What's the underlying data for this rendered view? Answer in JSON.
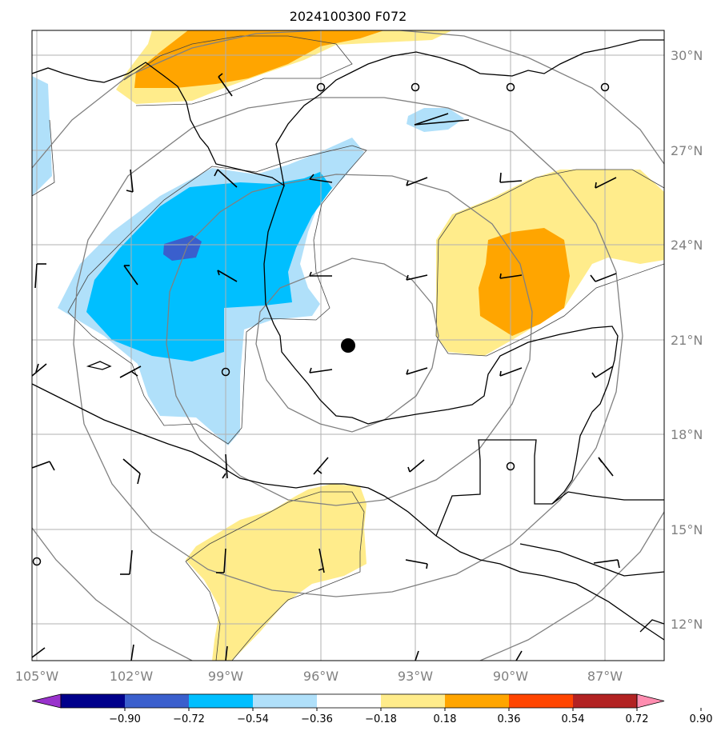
{
  "title": "2024100300 F072",
  "colors": {
    "land_outline": "#000000",
    "grid": "#b0b0b0",
    "range_ring": "#808080",
    "contour": "#444444",
    "storm_center": "#000000"
  },
  "map": {
    "lon_range": [
      -105,
      -83
    ],
    "lat_range": [
      11,
      31
    ],
    "lat_ticks": [
      {
        "value": 30,
        "label": "30°N"
      },
      {
        "value": 27,
        "label": "27°N"
      },
      {
        "value": 24,
        "label": "24°N"
      },
      {
        "value": 21,
        "label": "21°N"
      },
      {
        "value": 18,
        "label": "18°N"
      },
      {
        "value": 15,
        "label": "15°N"
      },
      {
        "value": 12,
        "label": "12°N"
      }
    ],
    "lon_ticks": [
      {
        "value": -105,
        "label": "105°W"
      },
      {
        "value": -102,
        "label": "102°W"
      },
      {
        "value": -99,
        "label": "99°W"
      },
      {
        "value": -96,
        "label": "96°W"
      },
      {
        "value": -93,
        "label": "93°W"
      },
      {
        "value": -90,
        "label": "90°W"
      },
      {
        "value": -87,
        "label": "87°W"
      }
    ],
    "storm_center": {
      "lon": -95.3,
      "lat": 20.8
    }
  },
  "colorbar": {
    "levels": [
      "−0.90",
      "−0.72",
      "−0.54",
      "−0.36",
      "−0.18",
      "0.18",
      "0.36",
      "0.54",
      "0.72",
      "0.90"
    ],
    "colors": [
      "#9932cc",
      "#00008b",
      "#3a5fcd",
      "#00bfff",
      "#b0e0fa",
      "#ffffff",
      "#ffec8b",
      "#ffa500",
      "#ff4500",
      "#b22222",
      "#ff8db0"
    ],
    "extend": "both"
  }
}
